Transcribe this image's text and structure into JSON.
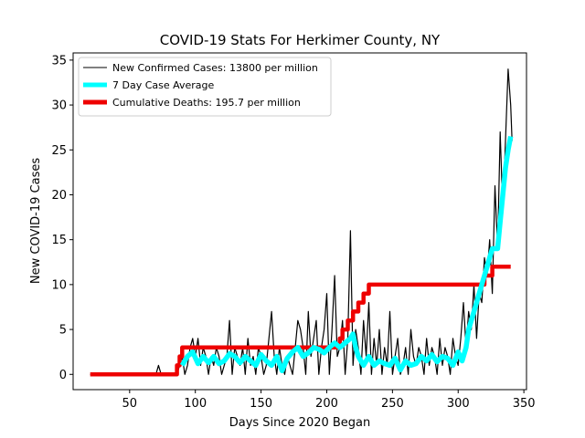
{
  "chart_data": {
    "type": "line",
    "title": "COVID-19 Stats For Herkimer County, NY",
    "xlabel": "Days Since 2020 Began",
    "ylabel": "New COVID-19 Cases",
    "xlim": [
      7,
      352
    ],
    "ylim": [
      -1.7,
      35.8
    ],
    "xticks": [
      50,
      100,
      150,
      200,
      250,
      300,
      350
    ],
    "yticks": [
      0,
      5,
      10,
      15,
      20,
      25,
      30,
      35
    ],
    "grid": false,
    "legend_position": "top-left",
    "series": [
      {
        "name": "New Confirmed Cases: 13800 per million",
        "color": "#000000",
        "style": "thin",
        "points": [
          [
            20,
            0
          ],
          [
            70,
            0
          ],
          [
            72,
            1
          ],
          [
            74,
            0
          ],
          [
            86,
            0
          ],
          [
            88,
            1
          ],
          [
            90,
            2
          ],
          [
            92,
            0
          ],
          [
            94,
            1
          ],
          [
            96,
            3
          ],
          [
            98,
            4
          ],
          [
            100,
            2
          ],
          [
            102,
            4
          ],
          [
            104,
            1
          ],
          [
            106,
            3
          ],
          [
            108,
            2
          ],
          [
            110,
            0
          ],
          [
            112,
            2
          ],
          [
            114,
            1
          ],
          [
            116,
            3
          ],
          [
            118,
            2
          ],
          [
            120,
            0
          ],
          [
            122,
            1
          ],
          [
            124,
            2
          ],
          [
            126,
            6
          ],
          [
            128,
            0
          ],
          [
            130,
            3
          ],
          [
            132,
            2
          ],
          [
            134,
            1
          ],
          [
            136,
            3
          ],
          [
            138,
            0
          ],
          [
            140,
            4
          ],
          [
            142,
            1
          ],
          [
            144,
            2
          ],
          [
            146,
            0
          ],
          [
            148,
            3
          ],
          [
            150,
            2
          ],
          [
            152,
            0
          ],
          [
            154,
            1
          ],
          [
            156,
            4
          ],
          [
            158,
            7
          ],
          [
            160,
            2
          ],
          [
            162,
            0
          ],
          [
            164,
            3
          ],
          [
            166,
            1
          ],
          [
            168,
            0
          ],
          [
            170,
            2
          ],
          [
            172,
            1
          ],
          [
            174,
            0
          ],
          [
            176,
            3
          ],
          [
            178,
            6
          ],
          [
            180,
            5
          ],
          [
            182,
            3
          ],
          [
            184,
            0
          ],
          [
            186,
            7
          ],
          [
            188,
            2
          ],
          [
            190,
            4
          ],
          [
            192,
            6
          ],
          [
            194,
            0
          ],
          [
            196,
            3
          ],
          [
            198,
            5
          ],
          [
            200,
            9
          ],
          [
            202,
            0
          ],
          [
            204,
            5
          ],
          [
            206,
            11
          ],
          [
            208,
            2
          ],
          [
            210,
            3
          ],
          [
            212,
            6
          ],
          [
            214,
            0
          ],
          [
            216,
            4
          ],
          [
            218,
            16
          ],
          [
            220,
            1
          ],
          [
            222,
            5
          ],
          [
            224,
            3
          ],
          [
            226,
            0
          ],
          [
            228,
            6
          ],
          [
            230,
            2
          ],
          [
            232,
            8
          ],
          [
            234,
            0
          ],
          [
            236,
            4
          ],
          [
            238,
            1
          ],
          [
            240,
            5
          ],
          [
            242,
            0
          ],
          [
            244,
            3
          ],
          [
            246,
            1
          ],
          [
            248,
            7
          ],
          [
            250,
            0
          ],
          [
            252,
            2
          ],
          [
            254,
            4
          ],
          [
            256,
            0
          ],
          [
            258,
            1
          ],
          [
            260,
            3
          ],
          [
            262,
            0
          ],
          [
            264,
            5
          ],
          [
            266,
            2
          ],
          [
            268,
            1
          ],
          [
            270,
            3
          ],
          [
            272,
            2
          ],
          [
            274,
            0
          ],
          [
            276,
            4
          ],
          [
            278,
            1
          ],
          [
            280,
            3
          ],
          [
            282,
            2
          ],
          [
            284,
            0
          ],
          [
            286,
            4
          ],
          [
            288,
            1
          ],
          [
            290,
            3
          ],
          [
            292,
            2
          ],
          [
            294,
            0
          ],
          [
            296,
            4
          ],
          [
            298,
            2
          ],
          [
            300,
            1
          ],
          [
            302,
            4
          ],
          [
            304,
            8
          ],
          [
            306,
            3
          ],
          [
            308,
            7
          ],
          [
            310,
            5
          ],
          [
            312,
            10
          ],
          [
            314,
            4
          ],
          [
            316,
            9
          ],
          [
            318,
            8
          ],
          [
            320,
            13
          ],
          [
            322,
            11
          ],
          [
            324,
            15
          ],
          [
            326,
            9
          ],
          [
            328,
            21
          ],
          [
            330,
            14
          ],
          [
            332,
            27
          ],
          [
            334,
            18
          ],
          [
            336,
            26
          ],
          [
            338,
            34
          ],
          [
            340,
            30
          ],
          [
            341,
            26
          ]
        ]
      },
      {
        "name": "7 Day Case Average",
        "color": "#00ffff",
        "style": "thick",
        "points": [
          [
            90,
            1
          ],
          [
            94,
            2
          ],
          [
            98,
            2.5
          ],
          [
            102,
            1.2
          ],
          [
            106,
            2
          ],
          [
            110,
            1.3
          ],
          [
            114,
            2
          ],
          [
            118,
            1.2
          ],
          [
            122,
            1.5
          ],
          [
            126,
            2.3
          ],
          [
            130,
            2
          ],
          [
            134,
            1.3
          ],
          [
            138,
            2
          ],
          [
            142,
            1.5
          ],
          [
            146,
            1
          ],
          [
            150,
            2.2
          ],
          [
            154,
            1.5
          ],
          [
            158,
            1
          ],
          [
            162,
            2
          ],
          [
            166,
            0.4
          ],
          [
            170,
            1.8
          ],
          [
            174,
            2.5
          ],
          [
            178,
            3
          ],
          [
            182,
            2
          ],
          [
            186,
            2.4
          ],
          [
            190,
            3
          ],
          [
            194,
            2.8
          ],
          [
            198,
            2.4
          ],
          [
            202,
            3
          ],
          [
            206,
            3.5
          ],
          [
            210,
            3
          ],
          [
            214,
            3.5
          ],
          [
            218,
            4
          ],
          [
            220,
            4.5
          ],
          [
            222,
            3
          ],
          [
            224,
            2
          ],
          [
            228,
            1
          ],
          [
            232,
            2
          ],
          [
            236,
            1
          ],
          [
            240,
            1.5
          ],
          [
            244,
            1.2
          ],
          [
            248,
            1
          ],
          [
            252,
            1.8
          ],
          [
            256,
            0.5
          ],
          [
            260,
            1.5
          ],
          [
            264,
            1
          ],
          [
            268,
            1.2
          ],
          [
            272,
            2
          ],
          [
            276,
            1.5
          ],
          [
            280,
            2.2
          ],
          [
            284,
            1.4
          ],
          [
            288,
            2
          ],
          [
            292,
            1.8
          ],
          [
            296,
            1
          ],
          [
            300,
            2.5
          ],
          [
            303,
            1.5
          ],
          [
            306,
            3
          ],
          [
            308,
            5
          ],
          [
            310,
            6
          ],
          [
            312,
            7
          ],
          [
            314,
            8
          ],
          [
            316,
            9
          ],
          [
            318,
            10
          ],
          [
            320,
            11
          ],
          [
            322,
            12
          ],
          [
            324,
            13
          ],
          [
            326,
            14
          ],
          [
            328,
            14
          ],
          [
            330,
            14
          ],
          [
            332,
            17
          ],
          [
            334,
            20
          ],
          [
            336,
            23
          ],
          [
            338,
            25
          ],
          [
            340,
            26.5
          ]
        ]
      },
      {
        "name": "Cumulative Deaths: 195.7 per million",
        "color": "#ee0000",
        "style": "thick-step",
        "points": [
          [
            20,
            0
          ],
          [
            86,
            0
          ],
          [
            86,
            1
          ],
          [
            88,
            1
          ],
          [
            88,
            2
          ],
          [
            90,
            2
          ],
          [
            90,
            3
          ],
          [
            210,
            3
          ],
          [
            210,
            4
          ],
          [
            212,
            4
          ],
          [
            212,
            5
          ],
          [
            216,
            5
          ],
          [
            216,
            6
          ],
          [
            220,
            6
          ],
          [
            220,
            7
          ],
          [
            224,
            7
          ],
          [
            224,
            8
          ],
          [
            228,
            8
          ],
          [
            228,
            9
          ],
          [
            232,
            9
          ],
          [
            232,
            10
          ],
          [
            320,
            10
          ],
          [
            320,
            11
          ],
          [
            326,
            11
          ],
          [
            326,
            12
          ],
          [
            340,
            12
          ]
        ]
      }
    ]
  }
}
